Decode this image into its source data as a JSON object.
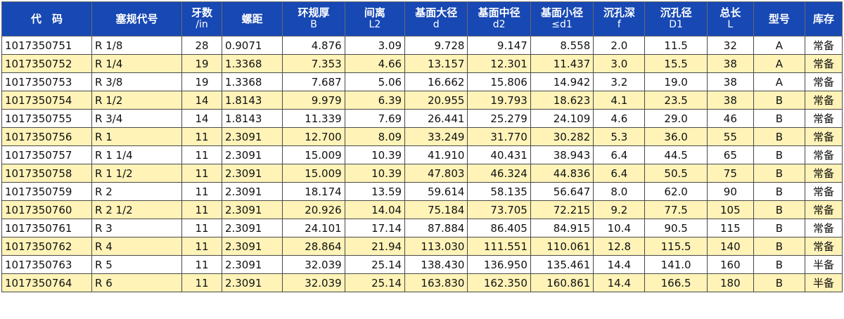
{
  "headers": [
    {
      "main": "代　码",
      "sub": ""
    },
    {
      "main": "塞规代号",
      "sub": ""
    },
    {
      "main": "牙数",
      "sub": "/in"
    },
    {
      "main": "螺距",
      "sub": ""
    },
    {
      "main": "环规厚",
      "sub": "B"
    },
    {
      "main": "间离",
      "sub": "L2"
    },
    {
      "main": "基面大径",
      "sub": "d"
    },
    {
      "main": "基面中径",
      "sub": "d2"
    },
    {
      "main": "基面小径",
      "sub": "≤d1"
    },
    {
      "main": "沉孔深",
      "sub": "f"
    },
    {
      "main": "沉孔径",
      "sub": "D1"
    },
    {
      "main": "总长",
      "sub": "L"
    },
    {
      "main": "型号",
      "sub": ""
    },
    {
      "main": "库存",
      "sub": ""
    }
  ],
  "rows": [
    [
      "1017350751",
      "R 1/8",
      "28",
      "0.9071",
      "4.876",
      "3.09",
      "9.728",
      "9.147",
      "8.558",
      "2.0",
      "11.5",
      "32",
      "A",
      "常备"
    ],
    [
      "1017350752",
      "R 1/4",
      "19",
      "1.3368",
      "7.353",
      "4.66",
      "13.157",
      "12.301",
      "11.437",
      "3.0",
      "15.5",
      "38",
      "A",
      "常备"
    ],
    [
      "1017350753",
      "R 3/8",
      "19",
      "1.3368",
      "7.687",
      "5.06",
      "16.662",
      "15.806",
      "14.942",
      "3.2",
      "19.0",
      "38",
      "A",
      "常备"
    ],
    [
      "1017350754",
      "R 1/2",
      "14",
      "1.8143",
      "9.979",
      "6.39",
      "20.955",
      "19.793",
      "18.623",
      "4.1",
      "23.5",
      "38",
      "B",
      "常备"
    ],
    [
      "1017350755",
      "R 3/4",
      "14",
      "1.8143",
      "11.339",
      "7.69",
      "26.441",
      "25.279",
      "24.109",
      "4.6",
      "29.0",
      "46",
      "B",
      "常备"
    ],
    [
      "1017350756",
      "R 1",
      "11",
      "2.3091",
      "12.700",
      "8.09",
      "33.249",
      "31.770",
      "30.282",
      "5.3",
      "36.0",
      "55",
      "B",
      "常备"
    ],
    [
      "1017350757",
      "R 1 1/4",
      "11",
      "2.3091",
      "15.009",
      "10.39",
      "41.910",
      "40.431",
      "38.943",
      "6.4",
      "44.5",
      "65",
      "B",
      "常备"
    ],
    [
      "1017350758",
      "R 1 1/2",
      "11",
      "2.3091",
      "15.009",
      "10.39",
      "47.803",
      "46.324",
      "44.836",
      "6.4",
      "50.5",
      "75",
      "B",
      "常备"
    ],
    [
      "1017350759",
      "R 2",
      "11",
      "2.3091",
      "18.174",
      "13.59",
      "59.614",
      "58.135",
      "56.647",
      "8.0",
      "62.0",
      "90",
      "B",
      "常备"
    ],
    [
      "1017350760",
      "R 2 1/2",
      "11",
      "2.3091",
      "20.926",
      "14.04",
      "75.184",
      "73.705",
      "72.215",
      "9.2",
      "77.5",
      "105",
      "B",
      "常备"
    ],
    [
      "1017350761",
      "R 3",
      "11",
      "2.3091",
      "24.101",
      "17.14",
      "87.884",
      "86.405",
      "84.915",
      "10.4",
      "90.5",
      "115",
      "B",
      "常备"
    ],
    [
      "1017350762",
      "R 4",
      "11",
      "2.3091",
      "28.864",
      "21.94",
      "113.030",
      "111.551",
      "110.061",
      "12.8",
      "115.5",
      "140",
      "B",
      "常备"
    ],
    [
      "1017350763",
      "R 5",
      "11",
      "2.3091",
      "32.039",
      "25.14",
      "138.430",
      "136.950",
      "135.461",
      "14.4",
      "141.0",
      "160",
      "B",
      "半备"
    ],
    [
      "1017350764",
      "R 6",
      "11",
      "2.3091",
      "32.039",
      "25.14",
      "163.830",
      "162.350",
      "160.861",
      "14.4",
      "166.5",
      "180",
      "B",
      "半备"
    ]
  ],
  "colors": {
    "header_background": "#1748b3",
    "header_text": "#ffffff",
    "stripe_row_background": "#fff3b8",
    "plain_row_background": "#ffffff",
    "grid_line": "#4a4a4a"
  }
}
